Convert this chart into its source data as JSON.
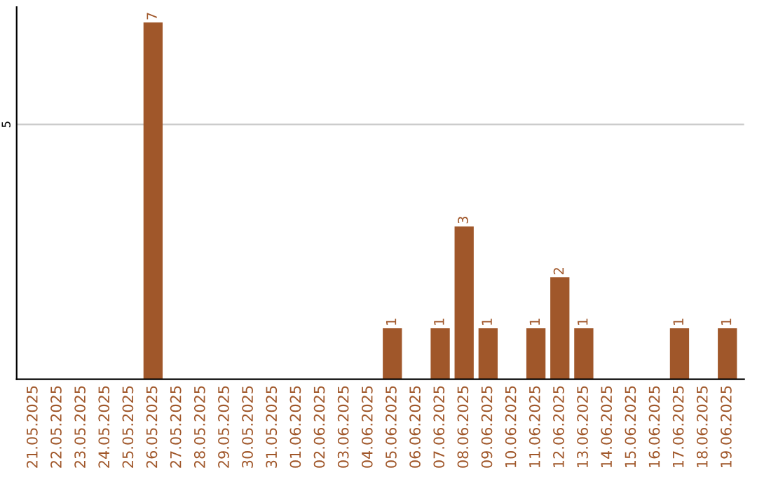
{
  "chart_data": {
    "type": "bar",
    "categories": [
      "21.05.2025",
      "22.05.2025",
      "23.05.2025",
      "24.05.2025",
      "25.05.2025",
      "26.05.2025",
      "27.05.2025",
      "28.05.2025",
      "29.05.2025",
      "30.05.2025",
      "31.05.2025",
      "01.06.2025",
      "02.06.2025",
      "03.06.2025",
      "04.06.2025",
      "05.06.2025",
      "06.06.2025",
      "07.06.2025",
      "08.06.2025",
      "09.06.2025",
      "10.06.2025",
      "11.06.2025",
      "12.06.2025",
      "13.06.2025",
      "14.06.2025",
      "15.06.2025",
      "16.06.2025",
      "17.06.2025",
      "18.06.2025",
      "19.06.2025"
    ],
    "values": [
      0,
      0,
      0,
      0,
      0,
      7,
      0,
      0,
      0,
      0,
      0,
      0,
      0,
      0,
      0,
      1,
      0,
      1,
      3,
      1,
      0,
      1,
      2,
      1,
      0,
      0,
      0,
      1,
      0,
      1
    ],
    "value_labels": [
      null,
      null,
      null,
      null,
      null,
      "7",
      null,
      null,
      null,
      null,
      null,
      null,
      null,
      null,
      null,
      "1",
      null,
      "1",
      "3",
      "1",
      null,
      "1",
      "2",
      "1",
      null,
      null,
      null,
      "1",
      null,
      "1"
    ],
    "color": "#a0572a",
    "ylim": [
      0,
      7.3
    ],
    "yticks": [
      5
    ],
    "grid": "y"
  }
}
